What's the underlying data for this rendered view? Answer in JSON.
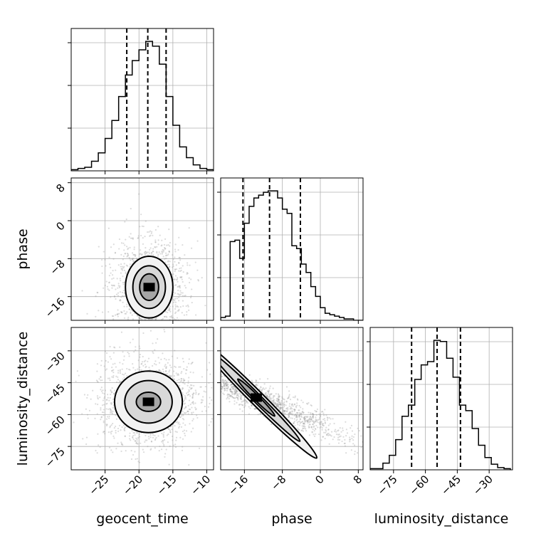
{
  "chart_data": {
    "type": "corner",
    "parameters": [
      "geocent_time",
      "phase",
      "luminosity_distance"
    ],
    "ranges": {
      "geocent_time": [
        -30,
        -9
      ],
      "phase": [
        -21,
        9
      ],
      "luminosity_distance": [
        -86,
        -19
      ]
    },
    "ticks": {
      "geocent_time": [
        -25,
        -20,
        -15,
        -10
      ],
      "phase": [
        -16,
        -8,
        0,
        8
      ],
      "luminosity_distance": [
        -75,
        -60,
        -45,
        -30
      ]
    },
    "tick_labels": {
      "geocent_time": [
        "−25",
        "−20",
        "−15",
        "−10"
      ],
      "phase": [
        "−16",
        "−8",
        "0",
        "8"
      ],
      "luminosity_distance": [
        "−75",
        "−60",
        "−45",
        "−30"
      ]
    },
    "quantiles": {
      "geocent_time": [
        -21.8,
        -18.7,
        -16.0
      ],
      "phase": [
        -16.3,
        -10.7,
        -4.2
      ],
      "luminosity_distance": [
        -66.5,
        -54.5,
        -43.5
      ]
    },
    "grid": true,
    "histograms": [
      {
        "parameter": "geocent_time",
        "bin_edges": [
          -30,
          -29,
          -28,
          -27,
          -26,
          -25,
          -24,
          -23,
          -22,
          -21,
          -20,
          -19,
          -18,
          -17,
          -16,
          -15,
          -14,
          -13,
          -12,
          -11,
          -10,
          -9
        ],
        "counts": [
          1,
          2,
          3,
          8,
          15,
          27,
          42,
          62,
          80,
          92,
          101,
          108,
          104,
          89,
          62,
          38,
          20,
          11,
          5,
          2,
          1
        ]
      },
      {
        "parameter": "phase",
        "bin_edges": [
          -21,
          -20,
          -19,
          -18,
          -17,
          -16,
          -15,
          -14,
          -13,
          -12,
          -11,
          -10,
          -9,
          -8,
          -7,
          -6,
          -5,
          -4,
          -3,
          -2,
          -1,
          0,
          1,
          2,
          3,
          4,
          5,
          6,
          7,
          8,
          9
        ],
        "counts": [
          2,
          3,
          56,
          57,
          44,
          69,
          81,
          87,
          89,
          91,
          92,
          92,
          87,
          79,
          76,
          53,
          51,
          40,
          34,
          24,
          17,
          9,
          5,
          4,
          3,
          2,
          1,
          1,
          0,
          0
        ]
      },
      {
        "parameter": "luminosity_distance",
        "bin_edges": [
          -86,
          -83,
          -80,
          -77,
          -74,
          -71,
          -68,
          -65,
          -62,
          -59,
          -56,
          -53,
          -50,
          -47,
          -44,
          -41,
          -38,
          -35,
          -32,
          -29,
          -26,
          -23,
          -20
        ],
        "counts": [
          1,
          1,
          6,
          13,
          27,
          48,
          58,
          81,
          94,
          97,
          116,
          115,
          100,
          83,
          58,
          53,
          37,
          22,
          11,
          5,
          2,
          1
        ]
      }
    ],
    "pairs": [
      {
        "x": "geocent_time",
        "y": "phase",
        "peak": [
          -18.5,
          -14.0
        ],
        "contours": [
          [
            3.5,
            6.5
          ],
          [
            2.4,
            4.5
          ],
          [
            1.4,
            2.8
          ]
        ]
      },
      {
        "x": "geocent_time",
        "y": "luminosity_distance",
        "peak": [
          -18.6,
          -54.0
        ],
        "contours": [
          [
            5.0,
            14.5
          ],
          [
            3.5,
            10.0
          ],
          [
            1.8,
            4.5
          ]
        ]
      },
      {
        "x": "phase",
        "y": "luminosity_distance",
        "peak": [
          -13.5,
          -52.0
        ],
        "rotation_deg": 45,
        "contours": [
          [
            18.0,
            3.2
          ],
          [
            13.0,
            2.0
          ],
          [
            5.5,
            1.2
          ]
        ]
      }
    ],
    "axis_labels": {
      "geocent_time": "geocent_time",
      "phase": "phase",
      "luminosity_distance": "luminosity_distance"
    }
  }
}
